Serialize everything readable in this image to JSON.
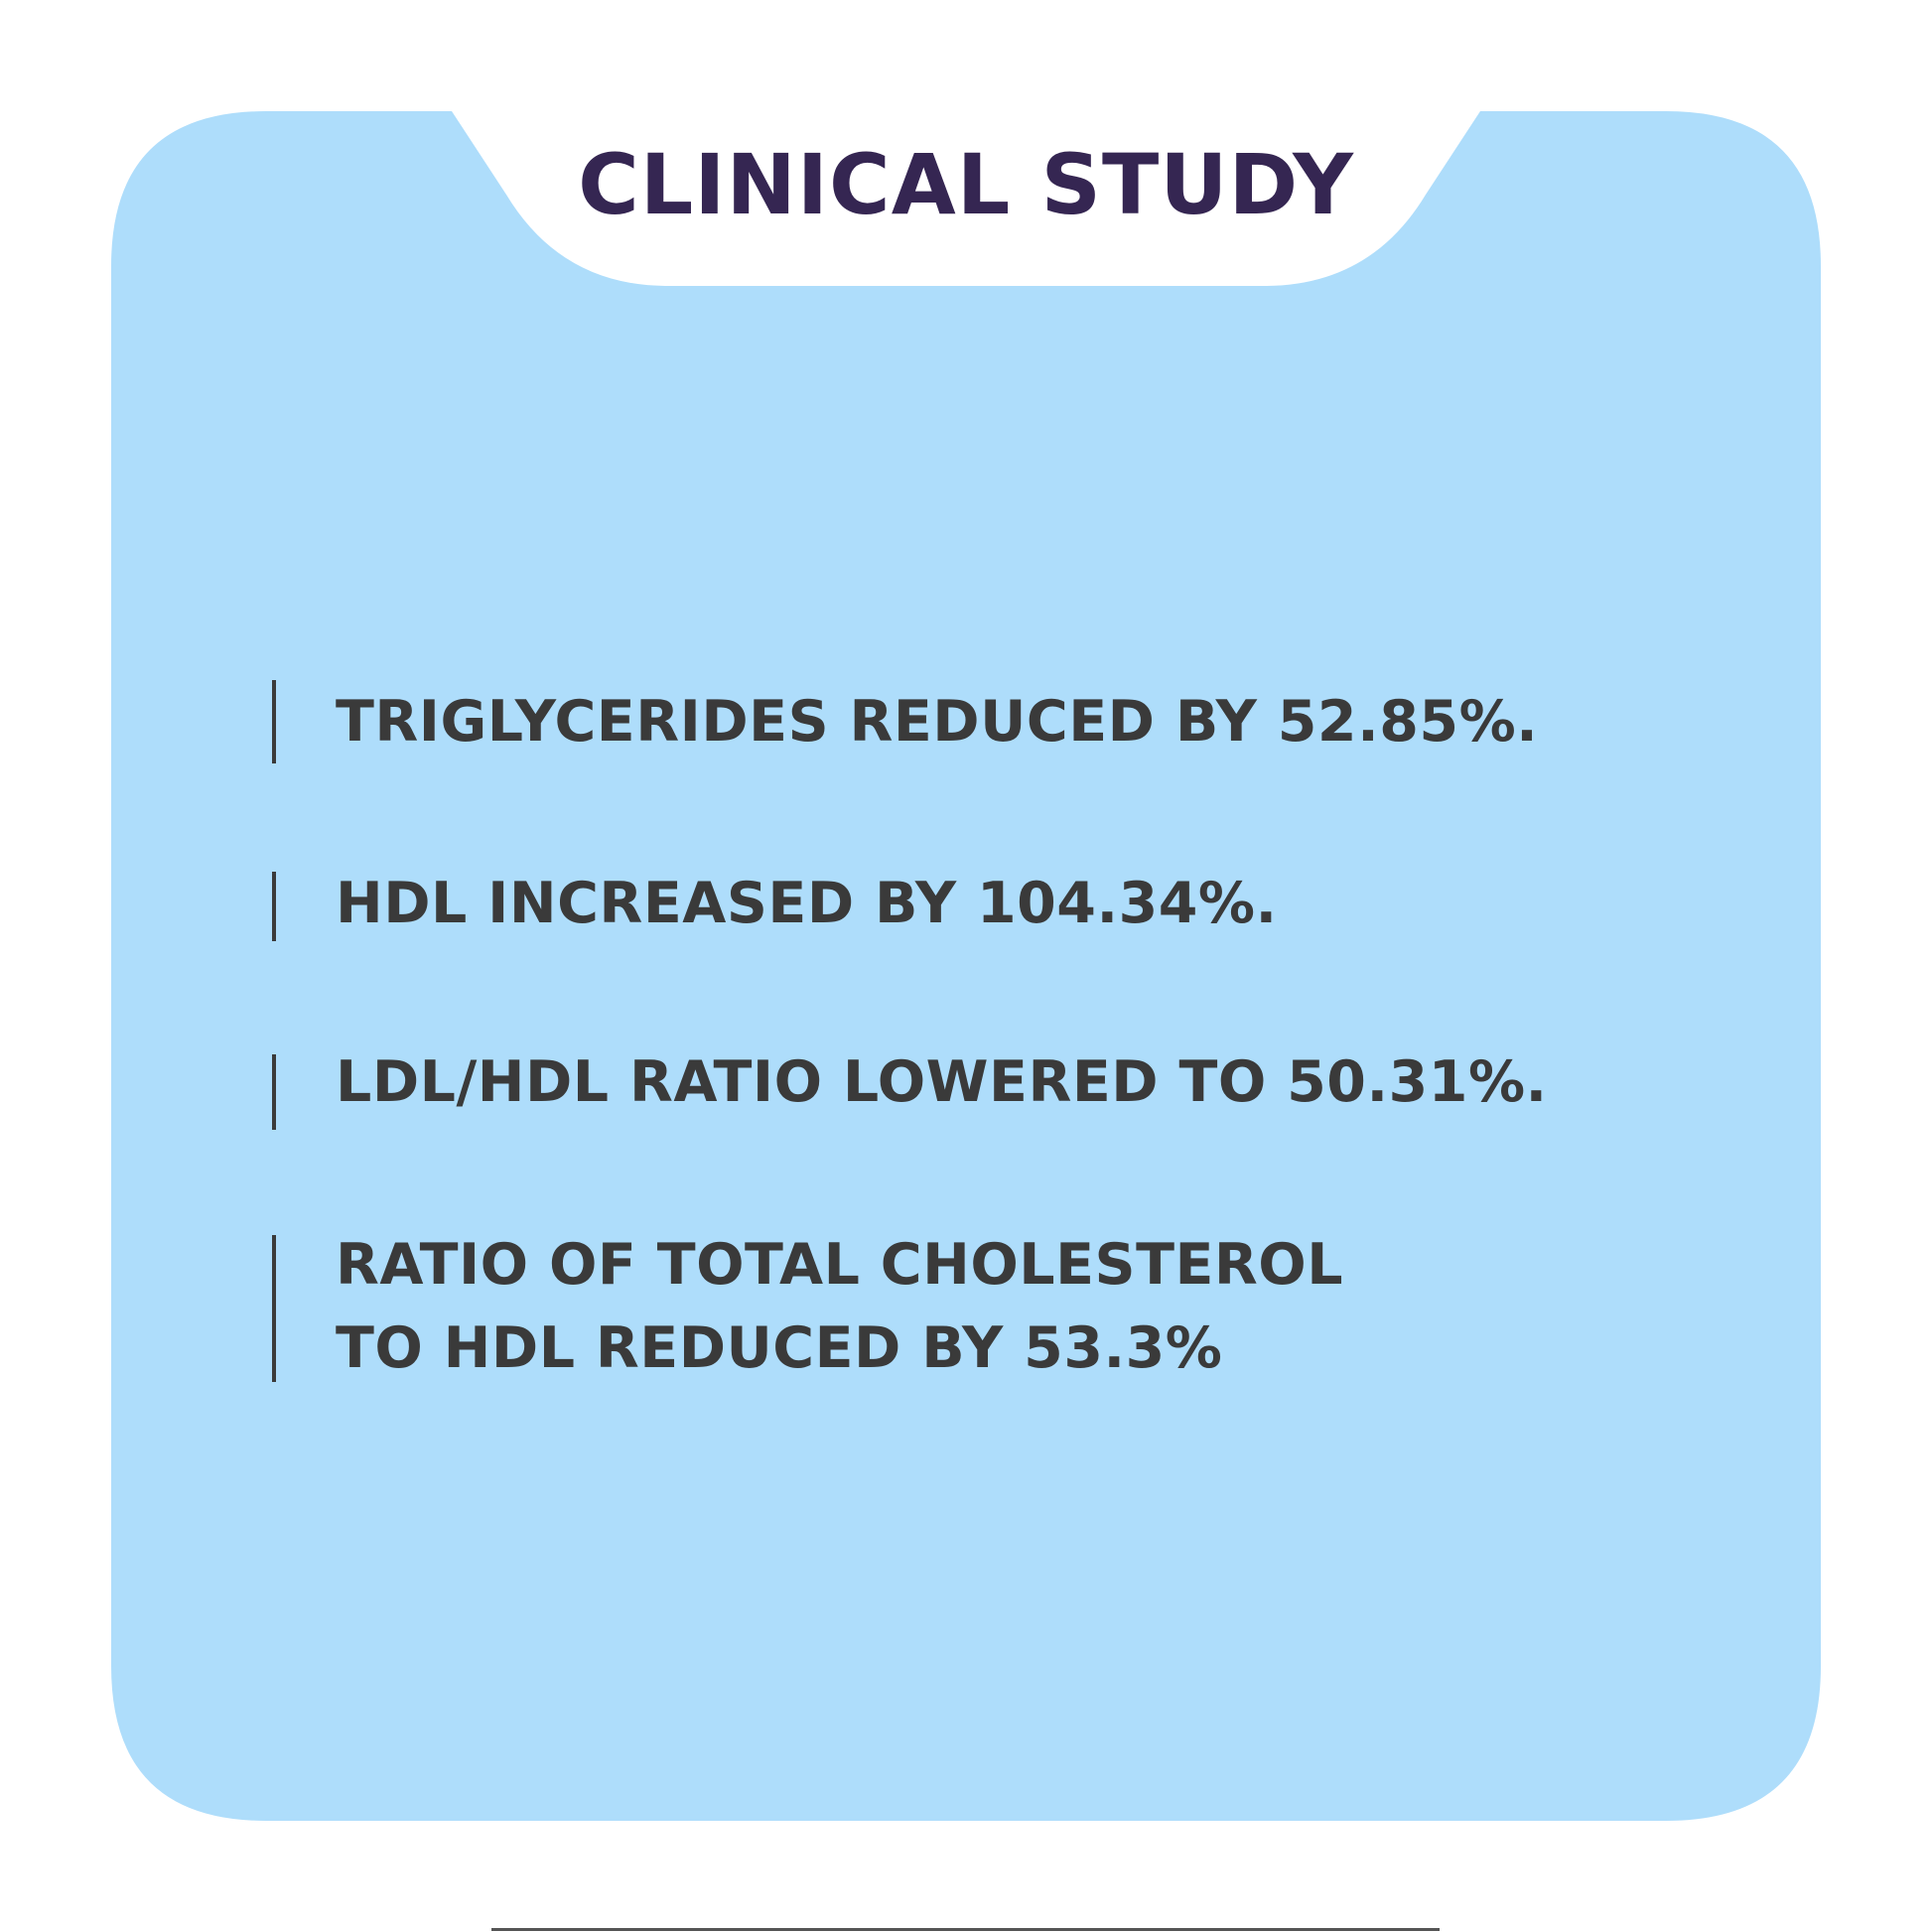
{
  "header": {
    "title": "CLINICAL STUDY"
  },
  "stats": [
    {
      "text": "TRIGLYCERIDES REDUCED BY 52.85%."
    },
    {
      "text": "HDL INCREASED BY 104.34%."
    },
    {
      "text": "LDL/HDL RATIO LOWERED TO 50.31%."
    },
    {
      "text": "RATIO OF TOTAL CHOLESTEROL\nTO HDL REDUCED BY 53.3%"
    }
  ],
  "colors": {
    "card": "#AEDDFB",
    "title": "#352652",
    "text": "#3A3A3A",
    "background": "#FFFFFF"
  }
}
